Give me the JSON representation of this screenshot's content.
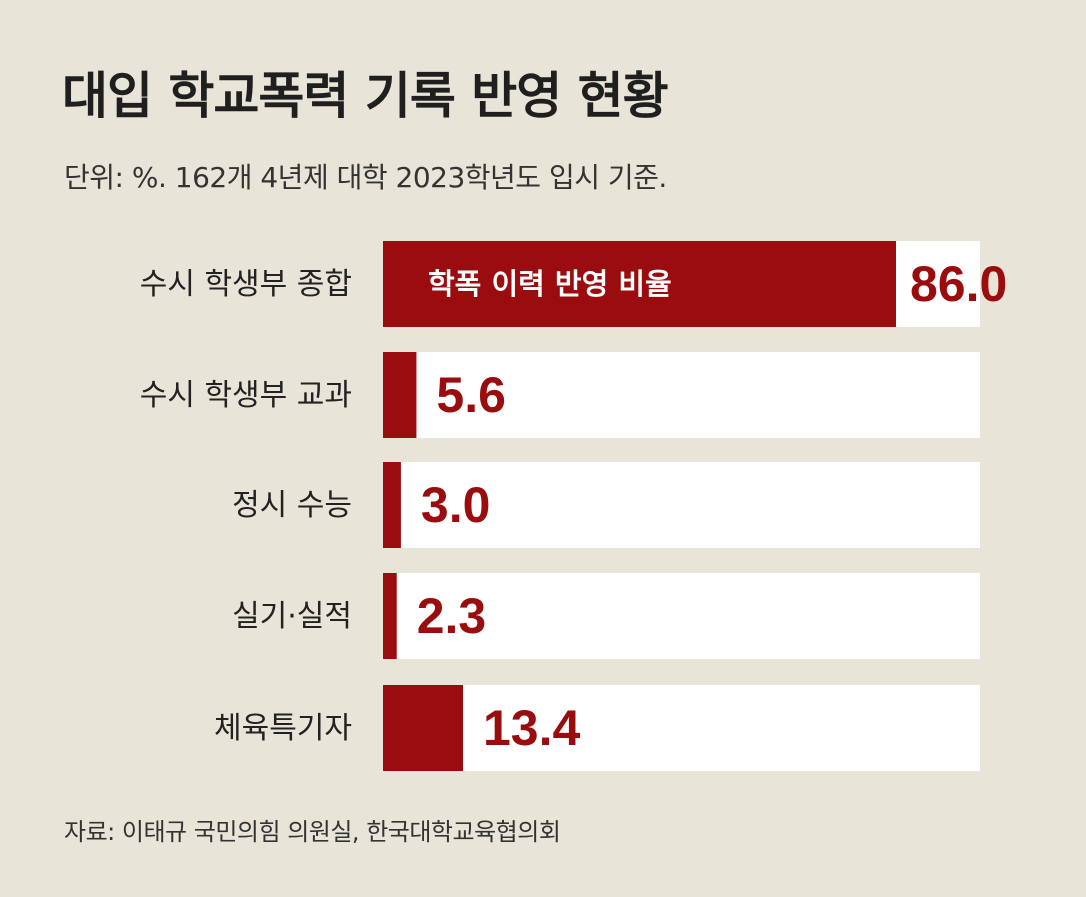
{
  "header": {
    "title": "대입 학교폭력 기록 반영 현황",
    "subtitle": "단위: %. 162개 4년제 대학 2023학년도 입시 기준."
  },
  "footer": {
    "source": "자료: 이태규 국민의힘 의원실, 한국대학교육협의회"
  },
  "colors": {
    "bar": "#9b0c0f",
    "track": "#ffffff",
    "value_text": "#9b0c0f",
    "label_text": "#222222",
    "background": "#e9e4d8"
  },
  "chart_data": {
    "type": "bar",
    "orientation": "horizontal",
    "title": "대입 학교폭력 기록 반영 현황",
    "subtitle": "단위: %. 162개 4년제 대학 2023학년도 입시 기준.",
    "unit": "%",
    "ylim": [
      0,
      100
    ],
    "categories": [
      "수시 학생부 종합",
      "수시 학생부 교과",
      "정시 수능",
      "실기·실적",
      "체육특기자"
    ],
    "values": [
      86.0,
      5.6,
      3.0,
      2.3,
      13.4
    ],
    "value_labels": [
      "86.0",
      "5.6",
      "3.0",
      "2.3",
      "13.4"
    ],
    "series": [
      {
        "name": "학폭 이력 반영 비율",
        "values": [
          86.0,
          5.6,
          3.0,
          2.3,
          13.4
        ]
      }
    ],
    "legend": {
      "text": "학폭 이력 반영 비율",
      "placement": "inside-first-bar"
    },
    "grid": false
  }
}
